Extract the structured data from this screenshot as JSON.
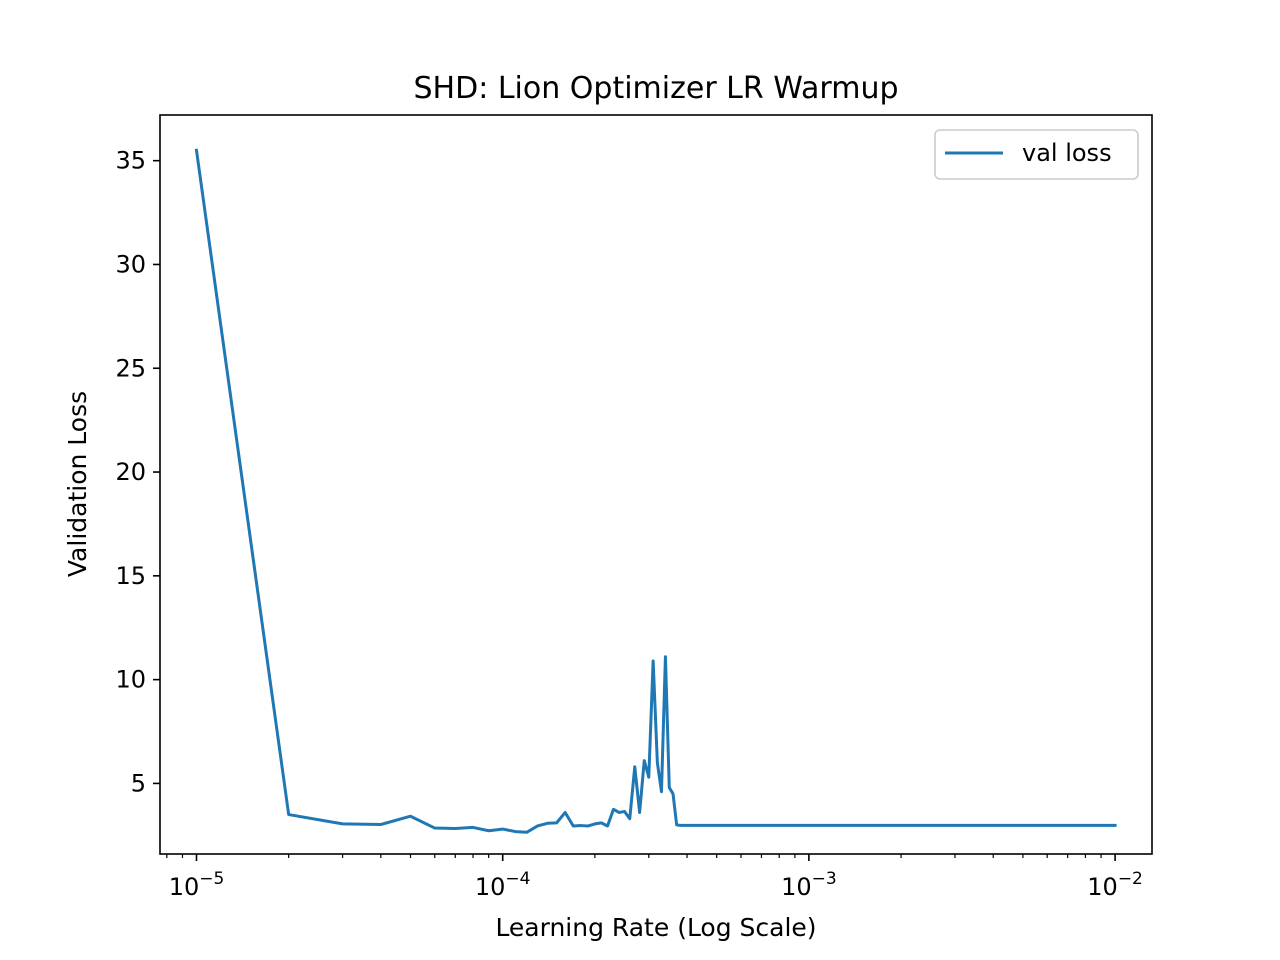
{
  "chart_data": {
    "type": "line",
    "title": "SHD: Lion Optimizer LR Warmup",
    "xlabel": "Learning Rate (Log Scale)",
    "ylabel": "Validation Loss",
    "xscale": "log",
    "xlim": [
      7.6e-06,
      0.0132
    ],
    "ylim": [
      1.6,
      37.2
    ],
    "xticks": [
      {
        "value": 1e-05,
        "base": "10",
        "exp": "−5"
      },
      {
        "value": 0.0001,
        "base": "10",
        "exp": "−4"
      },
      {
        "value": 0.001,
        "base": "10",
        "exp": "−3"
      },
      {
        "value": 0.01,
        "base": "10",
        "exp": "−2"
      }
    ],
    "yticks": [
      5,
      10,
      15,
      20,
      25,
      30,
      35
    ],
    "grid": false,
    "legend_position": "upper right",
    "color": "#1f77b4",
    "series": [
      {
        "name": "val loss",
        "x": [
          1e-05,
          2e-05,
          3e-05,
          4e-05,
          5e-05,
          6e-05,
          7e-05,
          8e-05,
          9e-05,
          0.0001,
          0.00011,
          0.00012,
          0.00013,
          0.00014,
          0.00015,
          0.00016,
          0.00017,
          0.00018,
          0.00019,
          0.0002,
          0.00021,
          0.00022,
          0.00023,
          0.00024,
          0.00025,
          0.00026,
          0.00027,
          0.00028,
          0.00029,
          0.0003,
          0.00031,
          0.00032,
          0.00033,
          0.00034,
          0.00035,
          0.00036,
          0.00037,
          0.00038,
          0.0005,
          0.001,
          0.002,
          0.005,
          0.01
        ],
        "values": [
          35.5,
          3.5,
          3.05,
          3.02,
          3.42,
          2.85,
          2.83,
          2.88,
          2.72,
          2.8,
          2.68,
          2.65,
          2.95,
          3.08,
          3.1,
          3.6,
          2.95,
          2.97,
          2.95,
          3.05,
          3.1,
          2.95,
          3.75,
          3.6,
          3.65,
          3.3,
          5.8,
          3.6,
          6.1,
          5.3,
          10.9,
          6.0,
          4.6,
          11.1,
          4.8,
          4.5,
          3.0,
          2.98,
          2.98,
          2.98,
          2.98,
          2.98,
          2.98
        ]
      }
    ]
  }
}
